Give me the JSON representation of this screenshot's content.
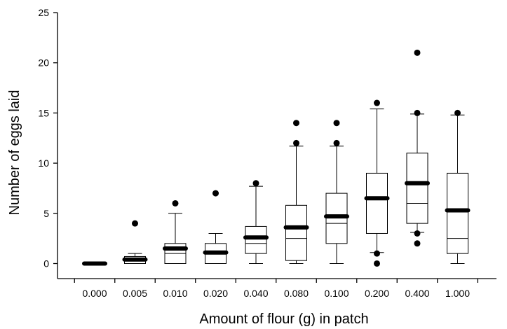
{
  "chart_data": {
    "type": "box",
    "title": "",
    "xlabel": "Amount of flour (g) in patch",
    "ylabel": "Number of eggs laid",
    "ylim": [
      -1.5,
      25
    ],
    "yticks": [
      0,
      5,
      10,
      15,
      20,
      25
    ],
    "grid": false,
    "categories": [
      "0.000",
      "0.005",
      "0.010",
      "0.020",
      "0.040",
      "0.080",
      "0.100",
      "0.200",
      "0.400",
      "1.000"
    ],
    "boxes": [
      {
        "category": "0.000",
        "whisker_low": 0,
        "q1": 0,
        "median": 0,
        "q3": 0,
        "whisker_high": 0,
        "mean": 0,
        "outliers": []
      },
      {
        "category": "0.005",
        "whisker_low": 0,
        "q1": 0,
        "median": 0,
        "q3": 0.7,
        "whisker_high": 1,
        "mean": 0.4,
        "outliers": [
          4
        ]
      },
      {
        "category": "0.010",
        "whisker_low": 0,
        "q1": 0,
        "median": 1,
        "q3": 2,
        "whisker_high": 5,
        "mean": 1.5,
        "outliers": [
          6
        ]
      },
      {
        "category": "0.020",
        "whisker_low": 0,
        "q1": 0,
        "median": 1,
        "q3": 2,
        "whisker_high": 3,
        "mean": 1.1,
        "outliers": [
          7
        ]
      },
      {
        "category": "0.040",
        "whisker_low": 0,
        "q1": 1,
        "median": 2,
        "q3": 3.7,
        "whisker_high": 7.7,
        "mean": 2.6,
        "outliers": [
          8
        ]
      },
      {
        "category": "0.080",
        "whisker_low": 0,
        "q1": 0.3,
        "median": 2.5,
        "q3": 5.8,
        "whisker_high": 11.7,
        "mean": 3.6,
        "outliers": [
          12,
          14
        ]
      },
      {
        "category": "0.100",
        "whisker_low": 0,
        "q1": 2,
        "median": 4,
        "q3": 7,
        "whisker_high": 11.7,
        "mean": 4.7,
        "outliers": [
          12,
          14
        ]
      },
      {
        "category": "0.200",
        "whisker_low": 1.1,
        "q1": 3,
        "median": 6.5,
        "q3": 9,
        "whisker_high": 15.4,
        "mean": 6.5,
        "outliers": [
          0,
          1,
          16
        ]
      },
      {
        "category": "0.400",
        "whisker_low": 3.1,
        "q1": 4,
        "median": 6,
        "q3": 11,
        "whisker_high": 14.9,
        "mean": 8,
        "outliers": [
          2,
          3,
          15,
          21
        ]
      },
      {
        "category": "1.000",
        "whisker_low": 0,
        "q1": 1,
        "median": 2.5,
        "q3": 9,
        "whisker_high": 14.8,
        "mean": 5.3,
        "outliers": [
          15
        ]
      }
    ]
  }
}
